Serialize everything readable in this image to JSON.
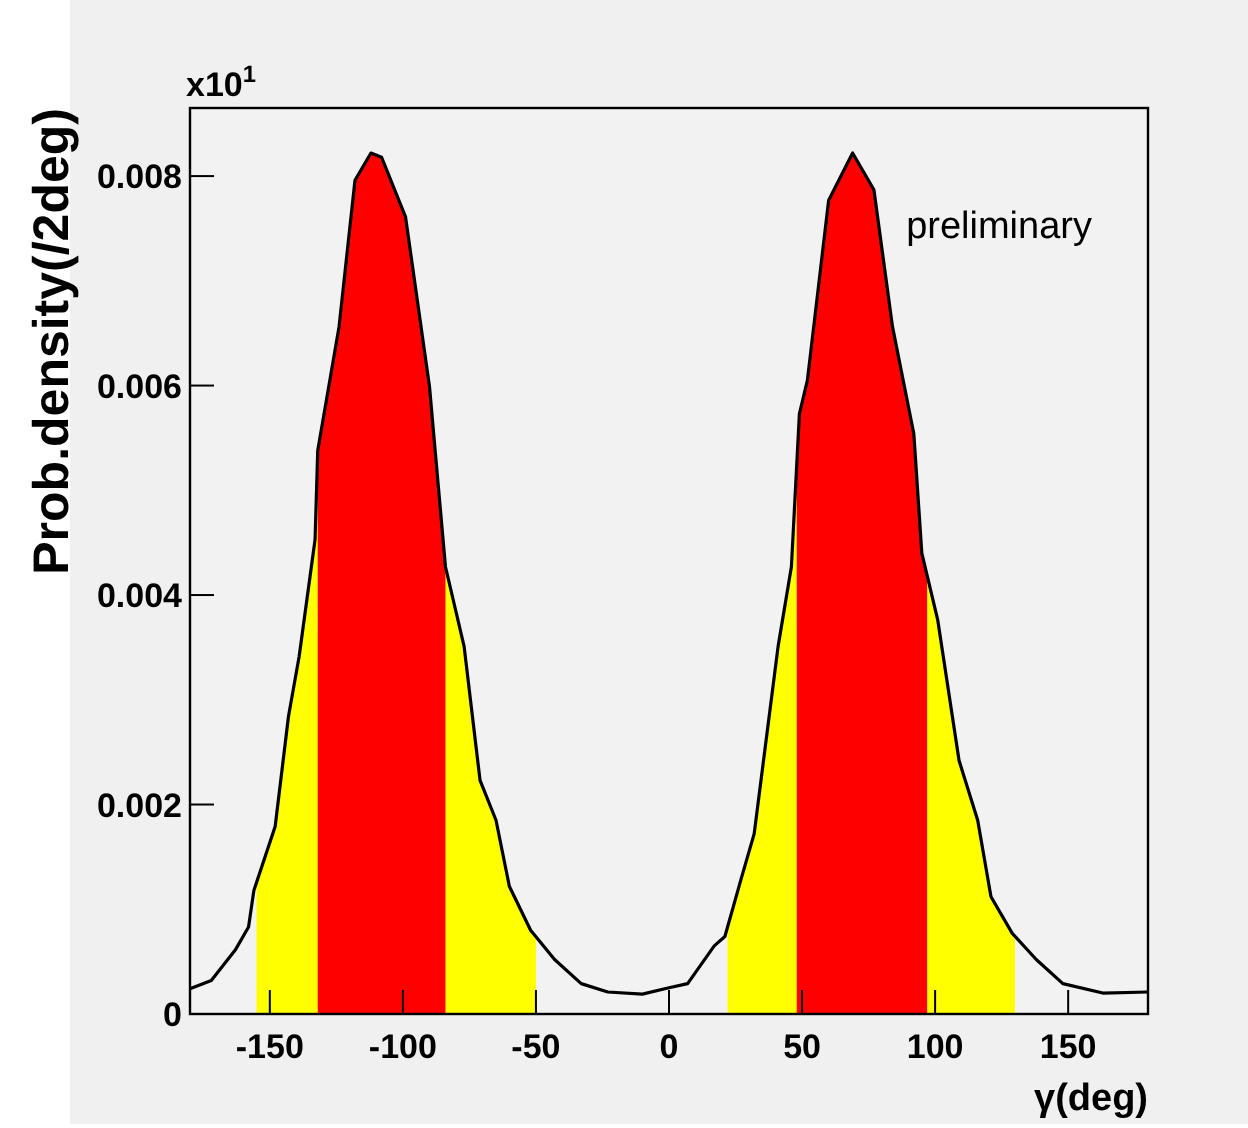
{
  "chart_data": {
    "type": "line",
    "xlabel": "γ(deg)",
    "ylabel": "Prob.density(/2deg)",
    "annotations": [
      "x10$^{1}$",
      "preliminary"
    ],
    "xlim": [
      -180,
      180
    ],
    "xticks": [
      -150,
      -100,
      -50,
      0,
      50,
      100,
      150
    ],
    "ylim": [
      0,
      0.00865
    ],
    "yticks": [
      0,
      0.002,
      0.004,
      0.006,
      0.008
    ],
    "marker": "none",
    "line_style": "solid",
    "bands": [
      {
        "axis": "x",
        "from": -155,
        "to": -50,
        "color": "#ffff00"
      },
      {
        "axis": "x",
        "from": -132,
        "to": -84,
        "color": "#ff0000"
      },
      {
        "axis": "x",
        "from": 22,
        "to": 130,
        "color": "#ffff00"
      },
      {
        "axis": "x",
        "from": 48,
        "to": 97,
        "color": "#ff0000"
      }
    ],
    "series": [
      {
        "color": "#000000",
        "x": [
          -180,
          -172,
          -163,
          -158,
          -156,
          -148,
          -143,
          -139,
          -133,
          -132,
          -124,
          -118,
          -112,
          -108,
          -99,
          -90,
          -84,
          -77,
          -71,
          -65,
          -60,
          -52,
          -43,
          -33,
          -23,
          -10,
          0,
          7,
          17,
          21,
          27,
          32,
          41,
          46,
          49,
          52,
          60,
          69,
          77,
          84,
          92,
          95,
          101,
          109,
          116,
          121,
          129,
          138,
          148,
          163,
          180
        ],
        "values": [
          0.00024,
          0.00032,
          0.00061,
          0.00083,
          0.00118,
          0.00179,
          0.00284,
          0.00341,
          0.00453,
          0.00538,
          0.00656,
          0.00796,
          0.00822,
          0.00818,
          0.00761,
          0.00599,
          0.00427,
          0.00351,
          0.00223,
          0.00185,
          0.00122,
          0.0008,
          0.00052,
          0.00029,
          0.00021,
          0.00019,
          0.00025,
          0.00029,
          0.00065,
          0.00074,
          0.00128,
          0.00172,
          0.00351,
          0.00427,
          0.00573,
          0.00605,
          0.00777,
          0.00822,
          0.00787,
          0.00656,
          0.00554,
          0.0044,
          0.00376,
          0.00242,
          0.00185,
          0.00112,
          0.00077,
          0.00052,
          0.00029,
          0.0002,
          0.00021
        ]
      }
    ]
  }
}
